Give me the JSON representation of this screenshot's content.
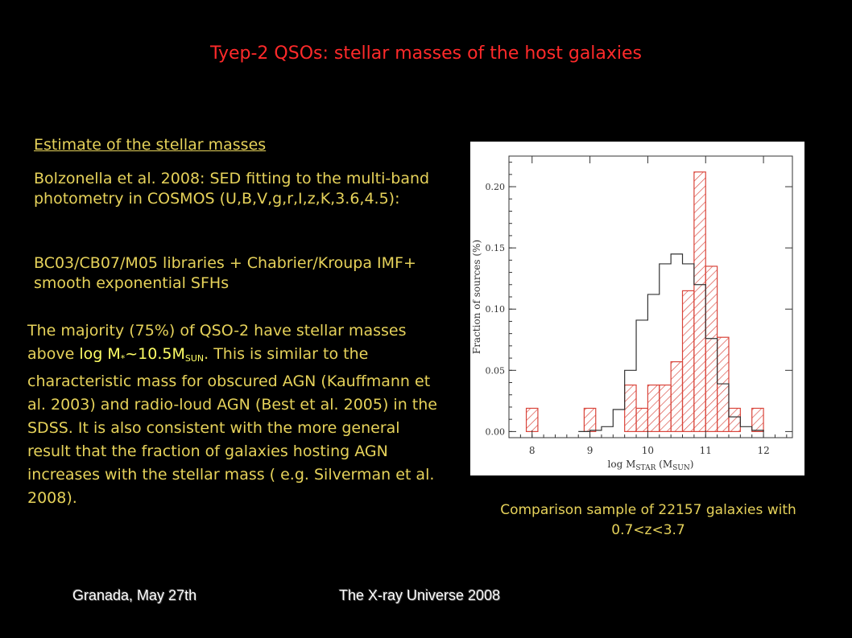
{
  "title": "Tyep-2 QSOs: stellar masses of the host galaxies",
  "section_heading": "Estimate of the stellar masses",
  "intro": "Bolzonella et al. 2008: SED fitting to the multi-band photometry in COSMOS (U,B,V,g,r,I,z,K,3.6,4.5):",
  "libraries": "BC03/CB07/M05 libraries + Chabrier/Kroupa IMF+ smooth exponential SFHs",
  "majority": {
    "part1": "The majority (75%) of QSO-2 have stellar masses above ",
    "highlight_main": "log M",
    "highlight_star": "*",
    "highlight_tilde": "~10.5M",
    "highlight_sub": "SUN",
    "part2": ". This is similar to the characteristic mass for obscured AGN (Kauffmann et al. 2003) and radio-loud AGN (Best et al. 2005) in the SDSS. It is also consistent with the more general result that the fraction of galaxies hosting AGN increases with the stellar mass ( e.g. Silverman et al. 2008)."
  },
  "caption": "Comparison sample of 22157 galaxies with 0.7<z<3.7",
  "footer_left": "Granada, May 27th",
  "footer_center": "The X-ray Universe 2008",
  "colors": {
    "background": "#000000",
    "title": "#ff2a2a",
    "text": "#e6d25a",
    "highlight": "#ffff66",
    "hatch": "#d9443a",
    "outline": "#333333"
  },
  "chart_data": {
    "type": "histogram",
    "ylabel": "Fraction of sources (%)",
    "xlabel": "log M",
    "xlabel_sub": "STAR",
    "xlabel_unit_open": " (M",
    "xlabel_unit_sub": "SUN",
    "xlabel_unit_close": ")",
    "xlim": [
      7.6,
      12.5
    ],
    "ylim": [
      -0.005,
      0.225
    ],
    "xticks": [
      8,
      9,
      10,
      11,
      12
    ],
    "yticks": [
      0.0,
      0.05,
      0.1,
      0.15,
      0.2
    ],
    "ytick_labels": [
      "0.00",
      "0.05",
      "0.10",
      "0.15",
      "0.20"
    ],
    "series": [
      {
        "style": "outline",
        "bins": [
          {
            "x0": 8.8,
            "x1": 9.0,
            "y": 0.0
          },
          {
            "x0": 9.0,
            "x1": 9.2,
            "y": 0.001
          },
          {
            "x0": 9.2,
            "x1": 9.4,
            "y": 0.004
          },
          {
            "x0": 9.4,
            "x1": 9.6,
            "y": 0.018
          },
          {
            "x0": 9.6,
            "x1": 9.8,
            "y": 0.05
          },
          {
            "x0": 9.8,
            "x1": 10.0,
            "y": 0.091
          },
          {
            "x0": 10.0,
            "x1": 10.2,
            "y": 0.112
          },
          {
            "x0": 10.2,
            "x1": 10.4,
            "y": 0.137
          },
          {
            "x0": 10.4,
            "x1": 10.6,
            "y": 0.145
          },
          {
            "x0": 10.6,
            "x1": 10.8,
            "y": 0.137
          },
          {
            "x0": 10.8,
            "x1": 11.0,
            "y": 0.12
          },
          {
            "x0": 11.0,
            "x1": 11.2,
            "y": 0.076
          },
          {
            "x0": 11.2,
            "x1": 11.4,
            "y": 0.039
          },
          {
            "x0": 11.4,
            "x1": 11.6,
            "y": 0.012
          },
          {
            "x0": 11.6,
            "x1": 11.8,
            "y": 0.004
          },
          {
            "x0": 11.8,
            "x1": 12.0,
            "y": 0.001
          }
        ]
      },
      {
        "style": "hatched",
        "bins": [
          {
            "x0": 7.9,
            "x1": 8.1,
            "y": 0.019
          },
          {
            "x0": 8.9,
            "x1": 9.1,
            "y": 0.019
          },
          {
            "x0": 9.6,
            "x1": 9.8,
            "y": 0.038
          },
          {
            "x0": 9.8,
            "x1": 10.0,
            "y": 0.019
          },
          {
            "x0": 10.0,
            "x1": 10.2,
            "y": 0.038
          },
          {
            "x0": 10.2,
            "x1": 10.4,
            "y": 0.038
          },
          {
            "x0": 10.4,
            "x1": 10.6,
            "y": 0.057
          },
          {
            "x0": 10.6,
            "x1": 10.8,
            "y": 0.115
          },
          {
            "x0": 10.8,
            "x1": 11.0,
            "y": 0.212
          },
          {
            "x0": 11.0,
            "x1": 11.2,
            "y": 0.135
          },
          {
            "x0": 11.2,
            "x1": 11.4,
            "y": 0.077
          },
          {
            "x0": 11.4,
            "x1": 11.6,
            "y": 0.019
          },
          {
            "x0": 11.8,
            "x1": 12.0,
            "y": 0.019
          }
        ]
      }
    ]
  }
}
